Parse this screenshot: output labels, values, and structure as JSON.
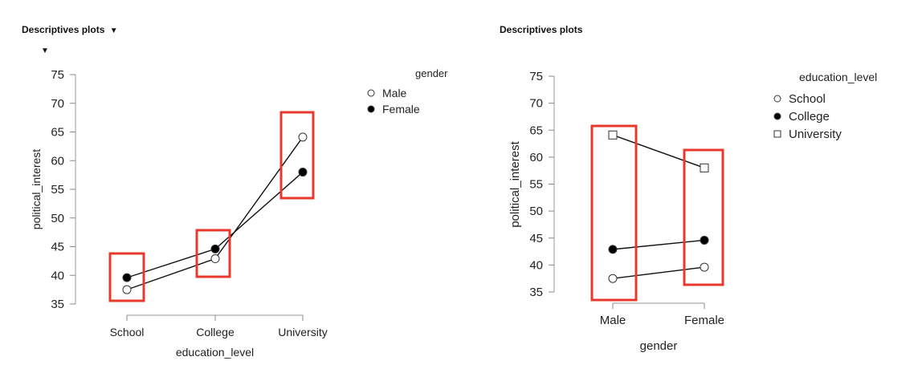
{
  "panels": [
    {
      "header": "Descriptives plots",
      "collapse_icon": "triangle-down-icon"
    },
    {
      "header": "Descriptives plots"
    }
  ],
  "chart_data": [
    {
      "type": "line",
      "xlabel": "education_level",
      "ylabel": "political_interest",
      "categories": [
        "School",
        "College",
        "University"
      ],
      "ylim": [
        35,
        75
      ],
      "yticks": [
        35,
        40,
        45,
        50,
        55,
        60,
        65,
        70,
        75
      ],
      "legend_title": "gender",
      "legend_position": "top-right",
      "series": [
        {
          "name": "Male",
          "marker": "open-circle",
          "values": [
            37.5,
            42.9,
            64.1
          ]
        },
        {
          "name": "Female",
          "marker": "filled-circle",
          "values": [
            39.6,
            44.6,
            58.0
          ]
        }
      ],
      "highlight_color": "#e8382c"
    },
    {
      "type": "line",
      "xlabel": "gender",
      "ylabel": "political_interest",
      "categories": [
        "Male",
        "Female"
      ],
      "ylim": [
        35,
        75
      ],
      "yticks": [
        35,
        40,
        45,
        50,
        55,
        60,
        65,
        70,
        75
      ],
      "legend_title": "education_level",
      "legend_position": "top-right",
      "series": [
        {
          "name": "School",
          "marker": "open-circle",
          "values": [
            37.5,
            39.6
          ]
        },
        {
          "name": "College",
          "marker": "filled-circle",
          "values": [
            42.9,
            44.6
          ]
        },
        {
          "name": "University",
          "marker": "open-square",
          "values": [
            64.1,
            58.0
          ]
        }
      ],
      "highlight_color": "#e8382c"
    }
  ]
}
